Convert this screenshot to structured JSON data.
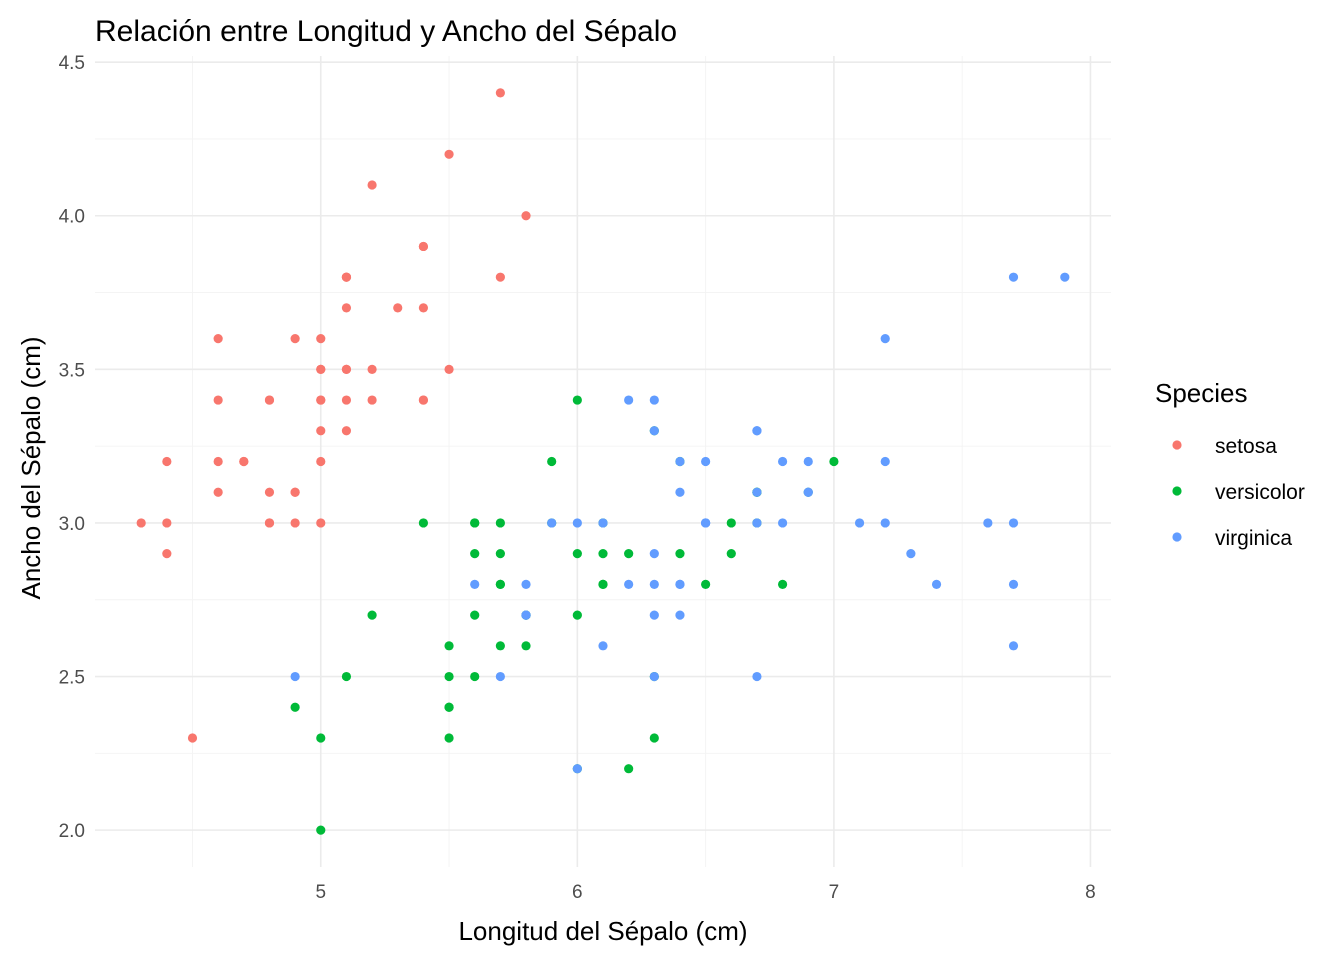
{
  "chart_data": {
    "type": "scatter",
    "title": "Relación entre Longitud y Ancho del Sépalo",
    "xlabel": "Longitud del Sépalo (cm)",
    "ylabel": "Ancho del Sépalo (cm)",
    "xlim": [
      4.12,
      8.08
    ],
    "ylim": [
      1.88,
      4.52
    ],
    "x_ticks": [
      5,
      6,
      7,
      8
    ],
    "x_tick_labels": [
      "5",
      "6",
      "7",
      "8"
    ],
    "y_ticks": [
      2.0,
      2.5,
      3.0,
      3.5,
      4.0,
      4.5
    ],
    "y_tick_labels": [
      "2.0",
      "2.5",
      "3.0",
      "3.5",
      "4.0",
      "4.5"
    ],
    "grid": true,
    "legend": {
      "title": "Species",
      "position": "right"
    },
    "series": [
      {
        "name": "setosa",
        "color": "#F8766D",
        "points": [
          [
            5.1,
            3.5
          ],
          [
            4.9,
            3.0
          ],
          [
            4.7,
            3.2
          ],
          [
            4.6,
            3.1
          ],
          [
            5.0,
            3.6
          ],
          [
            5.4,
            3.9
          ],
          [
            4.6,
            3.4
          ],
          [
            5.0,
            3.4
          ],
          [
            4.4,
            2.9
          ],
          [
            4.9,
            3.1
          ],
          [
            5.4,
            3.7
          ],
          [
            4.8,
            3.4
          ],
          [
            4.8,
            3.0
          ],
          [
            4.3,
            3.0
          ],
          [
            5.8,
            4.0
          ],
          [
            5.7,
            4.4
          ],
          [
            5.4,
            3.9
          ],
          [
            5.1,
            3.5
          ],
          [
            5.7,
            3.8
          ],
          [
            5.1,
            3.8
          ],
          [
            5.4,
            3.4
          ],
          [
            5.1,
            3.7
          ],
          [
            4.6,
            3.6
          ],
          [
            5.1,
            3.3
          ],
          [
            4.8,
            3.4
          ],
          [
            5.0,
            3.0
          ],
          [
            5.0,
            3.4
          ],
          [
            5.2,
            3.5
          ],
          [
            5.2,
            3.4
          ],
          [
            4.7,
            3.2
          ],
          [
            4.8,
            3.1
          ],
          [
            5.4,
            3.4
          ],
          [
            5.2,
            4.1
          ],
          [
            5.5,
            4.2
          ],
          [
            4.9,
            3.1
          ],
          [
            5.0,
            3.2
          ],
          [
            5.5,
            3.5
          ],
          [
            4.9,
            3.6
          ],
          [
            4.4,
            3.0
          ],
          [
            5.1,
            3.4
          ],
          [
            5.0,
            3.5
          ],
          [
            4.5,
            2.3
          ],
          [
            4.4,
            3.2
          ],
          [
            5.0,
            3.5
          ],
          [
            5.1,
            3.8
          ],
          [
            4.8,
            3.0
          ],
          [
            5.1,
            3.8
          ],
          [
            4.6,
            3.2
          ],
          [
            5.3,
            3.7
          ],
          [
            5.0,
            3.3
          ]
        ]
      },
      {
        "name": "versicolor",
        "color": "#00BA38",
        "points": [
          [
            7.0,
            3.2
          ],
          [
            6.4,
            3.2
          ],
          [
            6.9,
            3.1
          ],
          [
            5.5,
            2.3
          ],
          [
            6.5,
            2.8
          ],
          [
            5.7,
            2.8
          ],
          [
            6.3,
            3.3
          ],
          [
            4.9,
            2.4
          ],
          [
            6.6,
            2.9
          ],
          [
            5.2,
            2.7
          ],
          [
            5.0,
            2.0
          ],
          [
            5.9,
            3.0
          ],
          [
            6.0,
            2.2
          ],
          [
            6.1,
            2.9
          ],
          [
            5.6,
            2.9
          ],
          [
            6.7,
            3.1
          ],
          [
            5.6,
            3.0
          ],
          [
            5.8,
            2.7
          ],
          [
            6.2,
            2.2
          ],
          [
            5.6,
            2.5
          ],
          [
            5.9,
            3.2
          ],
          [
            6.1,
            2.8
          ],
          [
            6.3,
            2.5
          ],
          [
            6.1,
            2.8
          ],
          [
            6.4,
            2.9
          ],
          [
            6.6,
            3.0
          ],
          [
            6.8,
            2.8
          ],
          [
            6.7,
            3.0
          ],
          [
            6.0,
            2.9
          ],
          [
            5.7,
            2.6
          ],
          [
            5.5,
            2.4
          ],
          [
            5.5,
            2.4
          ],
          [
            5.8,
            2.7
          ],
          [
            6.0,
            2.7
          ],
          [
            5.4,
            3.0
          ],
          [
            6.0,
            3.4
          ],
          [
            6.7,
            3.1
          ],
          [
            6.3,
            2.3
          ],
          [
            5.6,
            3.0
          ],
          [
            5.5,
            2.5
          ],
          [
            5.5,
            2.6
          ],
          [
            6.1,
            3.0
          ],
          [
            5.8,
            2.6
          ],
          [
            5.0,
            2.3
          ],
          [
            5.6,
            2.7
          ],
          [
            5.7,
            3.0
          ],
          [
            5.7,
            2.9
          ],
          [
            6.2,
            2.9
          ],
          [
            5.1,
            2.5
          ],
          [
            5.7,
            2.8
          ]
        ]
      },
      {
        "name": "virginica",
        "color": "#619CFF",
        "points": [
          [
            6.3,
            3.3
          ],
          [
            5.8,
            2.7
          ],
          [
            7.1,
            3.0
          ],
          [
            6.3,
            2.9
          ],
          [
            6.5,
            3.0
          ],
          [
            7.6,
            3.0
          ],
          [
            4.9,
            2.5
          ],
          [
            7.3,
            2.9
          ],
          [
            6.7,
            2.5
          ],
          [
            7.2,
            3.6
          ],
          [
            6.5,
            3.2
          ],
          [
            6.4,
            2.7
          ],
          [
            6.8,
            3.0
          ],
          [
            5.7,
            2.5
          ],
          [
            5.8,
            2.8
          ],
          [
            6.4,
            3.2
          ],
          [
            6.5,
            3.0
          ],
          [
            7.7,
            3.8
          ],
          [
            7.7,
            2.6
          ],
          [
            6.0,
            2.2
          ],
          [
            6.9,
            3.2
          ],
          [
            5.6,
            2.8
          ],
          [
            7.7,
            2.8
          ],
          [
            6.3,
            2.7
          ],
          [
            6.7,
            3.3
          ],
          [
            7.2,
            3.2
          ],
          [
            6.2,
            2.8
          ],
          [
            6.1,
            3.0
          ],
          [
            6.4,
            2.8
          ],
          [
            7.2,
            3.0
          ],
          [
            7.4,
            2.8
          ],
          [
            7.9,
            3.8
          ],
          [
            6.4,
            2.8
          ],
          [
            6.3,
            2.8
          ],
          [
            6.1,
            2.6
          ],
          [
            7.7,
            3.0
          ],
          [
            6.3,
            3.4
          ],
          [
            6.4,
            3.1
          ],
          [
            6.0,
            3.0
          ],
          [
            6.9,
            3.1
          ],
          [
            6.7,
            3.1
          ],
          [
            6.9,
            3.1
          ],
          [
            5.8,
            2.7
          ],
          [
            6.8,
            3.2
          ],
          [
            6.7,
            3.3
          ],
          [
            6.7,
            3.0
          ],
          [
            6.3,
            2.5
          ],
          [
            6.5,
            3.0
          ],
          [
            6.2,
            3.4
          ],
          [
            5.9,
            3.0
          ]
        ]
      }
    ]
  }
}
